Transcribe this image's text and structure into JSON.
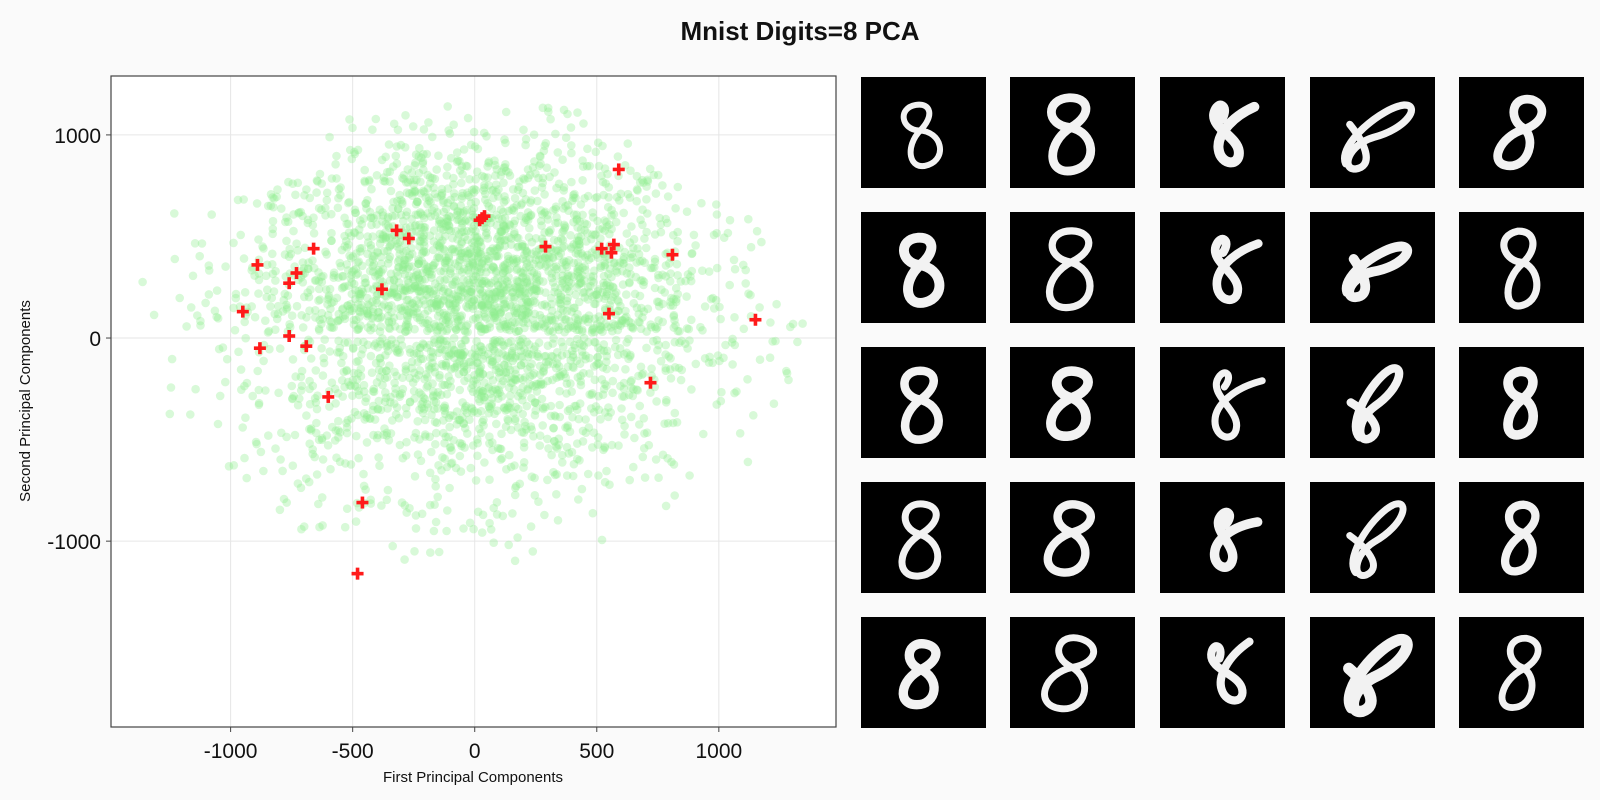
{
  "chart_data": {
    "type": "scatter",
    "title": "Mnist Digits=8 PCA",
    "xlabel": "First Principal  Components",
    "ylabel": "Second Principal  Components",
    "xlim": [
      -1490,
      1480
    ],
    "ylim": [
      -1915,
      1290
    ],
    "x_ticks": [
      -1000,
      -500,
      0,
      500,
      1000
    ],
    "y_ticks": [
      1000,
      0,
      -1000
    ],
    "x_tick_labels": [
      "-1000",
      "-500",
      "0",
      "500",
      "1000"
    ],
    "y_tick_labels": [
      "1000",
      "0",
      "-1000"
    ],
    "grid": true,
    "legend": "none",
    "series": [
      {
        "role": "all-samples",
        "color": "#90ee90",
        "opacity": 0.35,
        "point_count": 5851,
        "distribution_note": "dense green cloud spanning roughly x -1350..1350, y -1800..1150"
      },
      {
        "role": "selected-samples",
        "color": "#ff1a1a",
        "marker": "cross",
        "points": [
          [
            590,
            830
          ],
          [
            -320,
            530
          ],
          [
            -270,
            490
          ],
          [
            30,
            590
          ],
          [
            40,
            600
          ],
          [
            20,
            580
          ],
          [
            -660,
            440
          ],
          [
            -890,
            360
          ],
          [
            -730,
            320
          ],
          [
            -760,
            270
          ],
          [
            -380,
            240
          ],
          [
            -950,
            130
          ],
          [
            290,
            450
          ],
          [
            520,
            440
          ],
          [
            570,
            460
          ],
          [
            560,
            420
          ],
          [
            810,
            410
          ],
          [
            550,
            120
          ],
          [
            1150,
            90
          ],
          [
            -760,
            10
          ],
          [
            -690,
            -40
          ],
          [
            -880,
            -50
          ],
          [
            720,
            -220
          ],
          [
            -600,
            -290
          ],
          [
            -460,
            -810
          ],
          [
            -480,
            -1160
          ]
        ]
      }
    ]
  },
  "digit_grid": {
    "rows": 5,
    "cols": 5,
    "tile_background": "#000000",
    "stroke_color": "#f2f2f2",
    "digit_label": "8",
    "tiles": [
      "digit-8-sample-01",
      "digit-8-sample-02",
      "digit-8-sample-03",
      "digit-8-sample-04",
      "digit-8-sample-05",
      "digit-8-sample-06",
      "digit-8-sample-07",
      "digit-8-sample-08",
      "digit-8-sample-09",
      "digit-8-sample-10",
      "digit-8-sample-11",
      "digit-8-sample-12",
      "digit-8-sample-13",
      "digit-8-sample-14",
      "digit-8-sample-15",
      "digit-8-sample-16",
      "digit-8-sample-17",
      "digit-8-sample-18",
      "digit-8-sample-19",
      "digit-8-sample-20",
      "digit-8-sample-21",
      "digit-8-sample-22",
      "digit-8-sample-23",
      "digit-8-sample-24",
      "digit-8-sample-25"
    ]
  }
}
